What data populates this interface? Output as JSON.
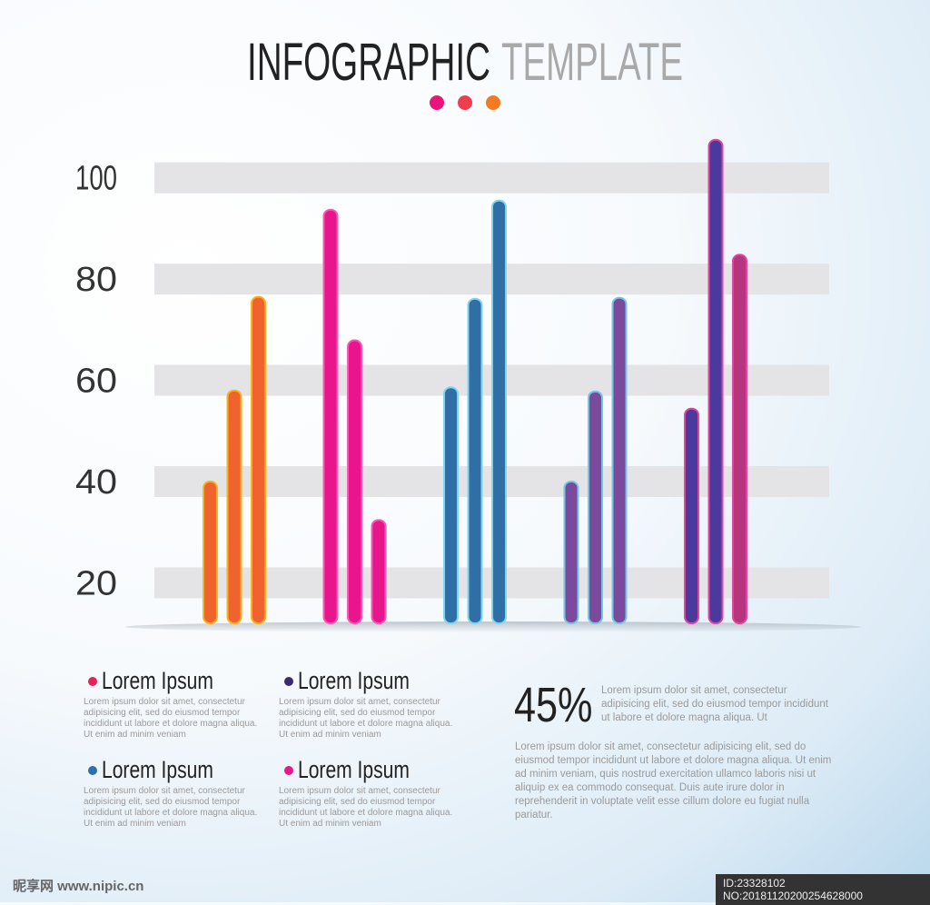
{
  "chart_data": {
    "type": "bar",
    "title_dark": "INFOGRAPHIC",
    "title_light": "TEMPLATE",
    "groups": [
      {
        "colors": [
          "#f0632e",
          "#f0632e",
          "#f0632e"
        ],
        "edge": "#f7b21e",
        "values": [
          40,
          58,
          76.5
        ]
      },
      {
        "colors": [
          "#e8158c",
          "#e8158c",
          "#e8158c"
        ],
        "edge": "#f25bb5",
        "values": [
          93.7,
          67.9,
          32.4
        ]
      },
      {
        "colors": [
          "#2f6fa6",
          "#2f6fa6",
          "#2f6fa6"
        ],
        "edge": "#7fd4f0",
        "values": [
          58.6,
          76.1,
          95.5
        ]
      },
      {
        "colors": [
          "#7b4a9c",
          "#7b4a9c",
          "#7b4a9c"
        ],
        "edge": "#6fc7e8",
        "values": [
          40,
          57.8,
          76.3
        ]
      },
      {
        "colors": [
          "#4a3a9e",
          "#4a3a9e",
          "#b8347e"
        ],
        "edge": "#e0459f",
        "values": [
          54.4,
          107.5,
          84.8
        ]
      }
    ],
    "ylim": [
      12,
      110
    ],
    "yticks": [
      20,
      40,
      60,
      80,
      100
    ],
    "grid": true
  },
  "legend": [
    {
      "label": "Lorem Ipsum",
      "color": "#e8205a",
      "text": "Lorem ipsum dolor sit amet, consectetur adipisicing elit, sed do eiusmod tempor incididunt ut labore et dolore magna aliqua. Ut enim ad minim veniam"
    },
    {
      "label": "Lorem Ipsum",
      "color": "#3b2a6e",
      "text": "Lorem ipsum dolor sit amet, consectetur adipisicing elit, sed do eiusmod tempor incididunt ut labore et dolore magna aliqua. Ut enim ad minim veniam"
    },
    {
      "label": "Lorem Ipsum",
      "color": "#2f6fb0",
      "text": "Lorem ipsum dolor sit amet, consectetur adipisicing elit, sed do eiusmod tempor incididunt ut labore et dolore magna aliqua. Ut enim ad minim veniam"
    },
    {
      "label": "Lorem Ipsum",
      "color": "#e8158c",
      "text": "Lorem ipsum dolor sit amet, consectetur adipisicing elit, sed do eiusmod tempor incididunt ut labore et dolore magna aliqua. Ut enim ad minim veniam"
    }
  ],
  "stat": {
    "value": "45%",
    "text": "Lorem ipsum dolor sit amet, consectetur adipisicing elit, sed do eiusmod tempor incididunt ut labore et dolore magna aliqua. Ut",
    "body": "Lorem ipsum dolor sit amet, consectetur adipisicing elit, sed do eiusmod tempor incididunt ut labore et dolore magna aliqua. Ut enim ad minim veniam, quis nostrud exercitation ullamco laboris nisi ut aliquip ex ea commodo consequat. Duis aute irure dolor in reprehenderit in voluptate velit esse cillum dolore eu fugiat nulla pariatur."
  },
  "watermark": {
    "site": "昵享网 www.nipic.cn",
    "id": "ID:23328102 NO:20181120200254628000"
  }
}
